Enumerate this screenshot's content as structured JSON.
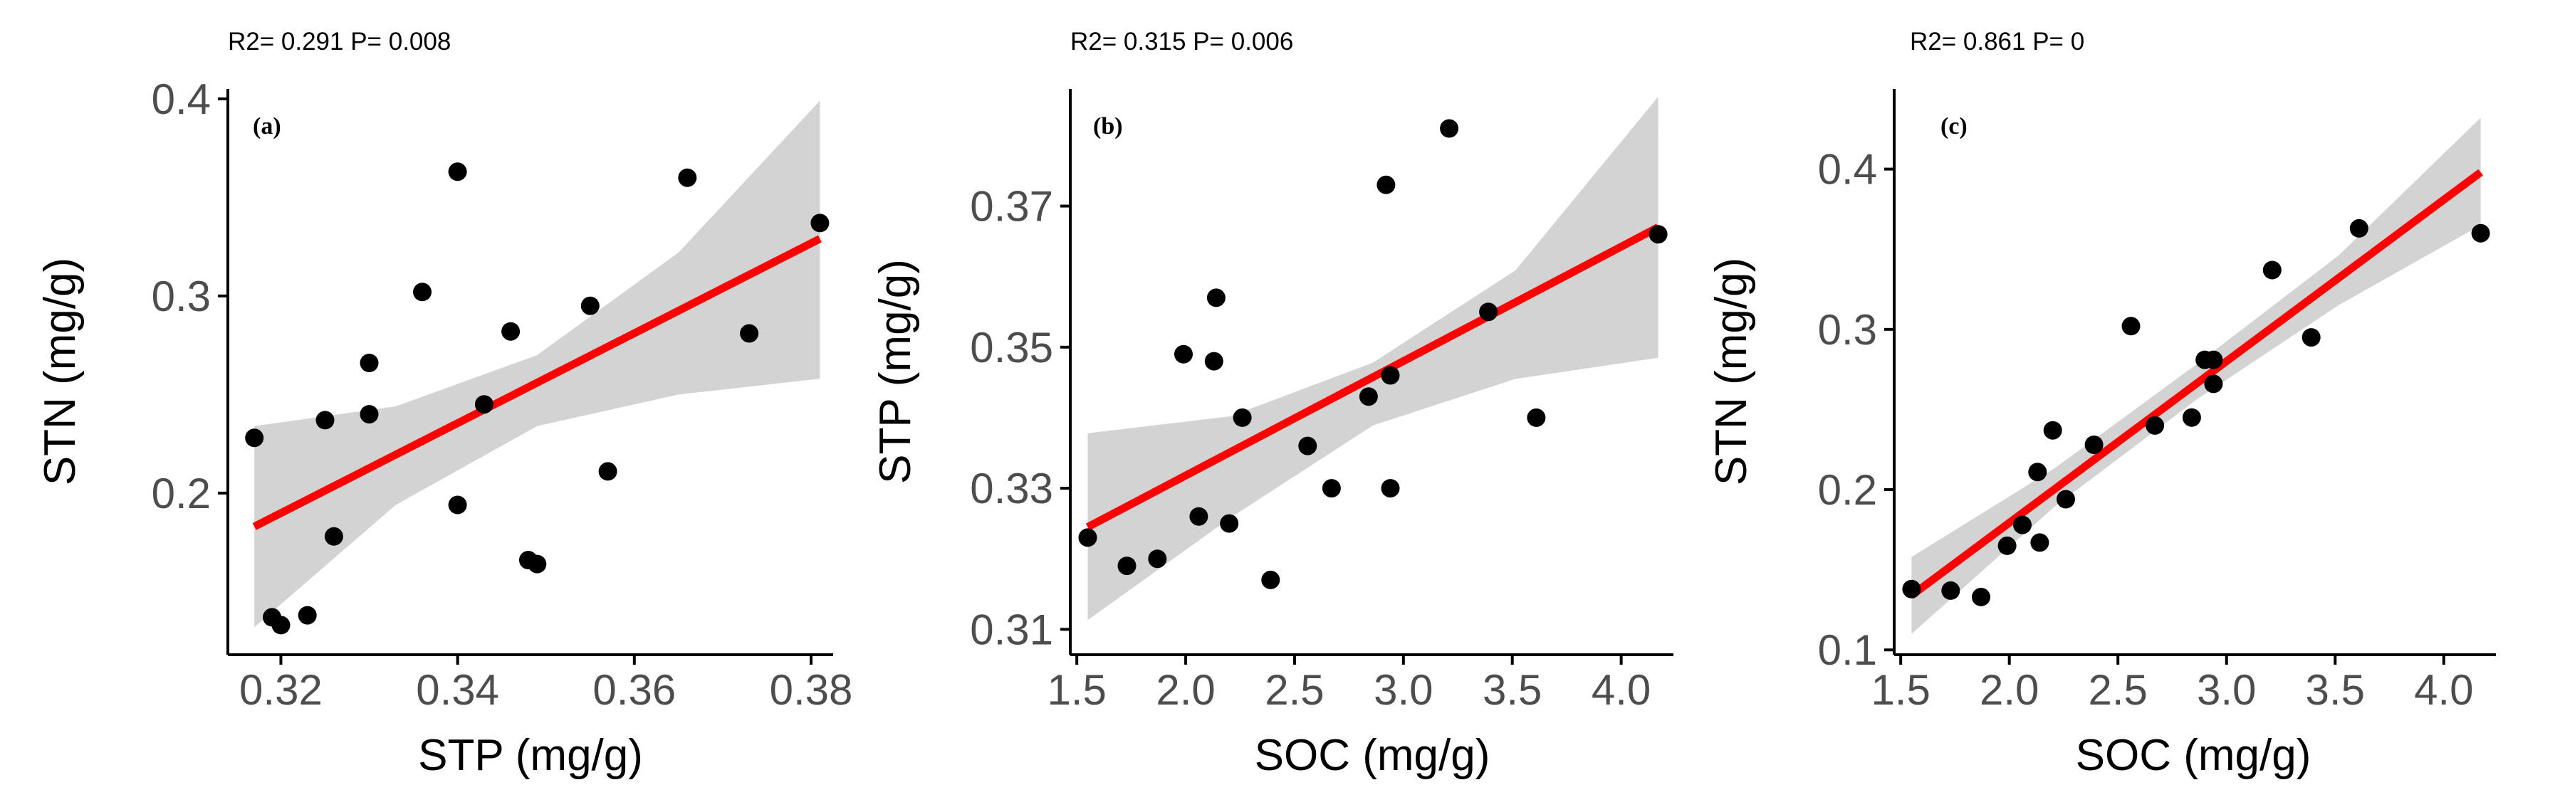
{
  "colors": {
    "band": "#d3d3d3",
    "fit_line": "#ff0000",
    "point": "#000000",
    "axis": "#000000",
    "tick_text": "#4d4d4d"
  },
  "chart_data": [
    {
      "type": "scatter",
      "panel_label": "(a)",
      "stats": "R2= 0.291  P= 0.008",
      "xlabel": "STP (mg/g)",
      "ylabel": "STN (mg/g)",
      "xlim": [
        0.314,
        0.3825
      ],
      "ylim": [
        0.118,
        0.405
      ],
      "xticks": [
        0.32,
        0.34,
        0.36,
        0.38
      ],
      "xtick_labels": [
        "0.32",
        "0.34",
        "0.36",
        "0.38"
      ],
      "yticks": [
        0.2,
        0.3,
        0.4
      ],
      "ytick_labels": [
        "0.2",
        "0.3",
        "0.4"
      ],
      "points": [
        {
          "x": 0.317,
          "y": 0.228
        },
        {
          "x": 0.319,
          "y": 0.137
        },
        {
          "x": 0.32,
          "y": 0.133
        },
        {
          "x": 0.323,
          "y": 0.138
        },
        {
          "x": 0.325,
          "y": 0.237
        },
        {
          "x": 0.326,
          "y": 0.178
        },
        {
          "x": 0.33,
          "y": 0.266
        },
        {
          "x": 0.33,
          "y": 0.24
        },
        {
          "x": 0.336,
          "y": 0.302
        },
        {
          "x": 0.34,
          "y": 0.363
        },
        {
          "x": 0.34,
          "y": 0.194
        },
        {
          "x": 0.343,
          "y": 0.245
        },
        {
          "x": 0.346,
          "y": 0.282
        },
        {
          "x": 0.348,
          "y": 0.166
        },
        {
          "x": 0.349,
          "y": 0.164
        },
        {
          "x": 0.355,
          "y": 0.295
        },
        {
          "x": 0.357,
          "y": 0.211
        },
        {
          "x": 0.366,
          "y": 0.36
        },
        {
          "x": 0.373,
          "y": 0.281
        },
        {
          "x": 0.381,
          "y": 0.337
        }
      ],
      "fit": {
        "x": [
          0.317,
          0.381
        ],
        "y": [
          0.183,
          0.329
        ]
      },
      "band": {
        "x": [
          0.317,
          0.333,
          0.349,
          0.365,
          0.381
        ],
        "lower": [
          0.132,
          0.194,
          0.234,
          0.25,
          0.258
        ],
        "upper": [
          0.234,
          0.244,
          0.27,
          0.322,
          0.399
        ]
      }
    },
    {
      "type": "scatter",
      "panel_label": "(b)",
      "stats": "R2= 0.315  P= 0.006",
      "xlabel": "SOC (mg/g)",
      "ylabel": "STP (mg/g)",
      "xlim": [
        1.47,
        4.24
      ],
      "ylim": [
        0.3064,
        0.3866
      ],
      "xticks": [
        1.5,
        2.0,
        2.5,
        3.0,
        3.5,
        4.0
      ],
      "xtick_labels": [
        "1.5",
        "2.0",
        "2.5",
        "3.0",
        "3.5",
        "4.0"
      ],
      "yticks": [
        0.31,
        0.33,
        0.35,
        0.37
      ],
      "ytick_labels": [
        "0.31",
        "0.33",
        "0.35",
        "0.37"
      ],
      "points": [
        {
          "x": 1.55,
          "y": 0.323
        },
        {
          "x": 1.73,
          "y": 0.319
        },
        {
          "x": 1.87,
          "y": 0.32
        },
        {
          "x": 1.99,
          "y": 0.349
        },
        {
          "x": 2.06,
          "y": 0.326
        },
        {
          "x": 2.13,
          "y": 0.348
        },
        {
          "x": 2.14,
          "y": 0.357
        },
        {
          "x": 2.2,
          "y": 0.325
        },
        {
          "x": 2.26,
          "y": 0.34
        },
        {
          "x": 2.39,
          "y": 0.317
        },
        {
          "x": 2.56,
          "y": 0.336
        },
        {
          "x": 2.67,
          "y": 0.33
        },
        {
          "x": 2.84,
          "y": 0.343
        },
        {
          "x": 2.92,
          "y": 0.373
        },
        {
          "x": 2.94,
          "y": 0.346
        },
        {
          "x": 2.94,
          "y": 0.33
        },
        {
          "x": 3.21,
          "y": 0.381
        },
        {
          "x": 3.39,
          "y": 0.355
        },
        {
          "x": 3.61,
          "y": 0.34
        },
        {
          "x": 4.17,
          "y": 0.366
        }
      ],
      "fit": {
        "x": [
          1.55,
          4.17
        ],
        "y": [
          0.3245,
          0.367
        ]
      },
      "band": {
        "x": [
          1.55,
          2.205,
          2.86,
          3.515,
          4.17
        ],
        "lower": [
          0.3113,
          0.3258,
          0.3389,
          0.3455,
          0.3485
        ],
        "upper": [
          0.3378,
          0.3402,
          0.3478,
          0.3609,
          0.3855
        ]
      }
    },
    {
      "type": "scatter",
      "panel_label": "(c)",
      "stats": "R2= 0.861  P= 0",
      "xlabel": "SOC (mg/g)",
      "ylabel": "STN (mg/g)",
      "xlim": [
        1.47,
        4.24
      ],
      "ylim": [
        0.097,
        0.45
      ],
      "xticks": [
        1.5,
        2.0,
        2.5,
        3.0,
        3.5,
        4.0
      ],
      "xtick_labels": [
        "1.5",
        "2.0",
        "2.5",
        "3.0",
        "3.5",
        "4.0"
      ],
      "yticks": [
        0.1,
        0.2,
        0.3,
        0.4
      ],
      "ytick_labels": [
        "0.1",
        "0.2",
        "0.3",
        "0.4"
      ],
      "points": [
        {
          "x": 1.55,
          "y": 0.138
        },
        {
          "x": 1.73,
          "y": 0.137
        },
        {
          "x": 1.87,
          "y": 0.133
        },
        {
          "x": 1.99,
          "y": 0.165
        },
        {
          "x": 2.06,
          "y": 0.178
        },
        {
          "x": 2.13,
          "y": 0.211
        },
        {
          "x": 2.14,
          "y": 0.167
        },
        {
          "x": 2.2,
          "y": 0.237
        },
        {
          "x": 2.26,
          "y": 0.194
        },
        {
          "x": 2.39,
          "y": 0.228
        },
        {
          "x": 2.56,
          "y": 0.302
        },
        {
          "x": 2.67,
          "y": 0.24
        },
        {
          "x": 2.84,
          "y": 0.245
        },
        {
          "x": 2.9,
          "y": 0.281
        },
        {
          "x": 2.94,
          "y": 0.281
        },
        {
          "x": 2.94,
          "y": 0.266
        },
        {
          "x": 3.21,
          "y": 0.337
        },
        {
          "x": 3.39,
          "y": 0.295
        },
        {
          "x": 3.61,
          "y": 0.363
        },
        {
          "x": 4.17,
          "y": 0.36
        }
      ],
      "fit": {
        "x": [
          1.55,
          4.17
        ],
        "y": [
          0.134,
          0.398
        ]
      },
      "band": {
        "x": [
          1.55,
          2.205,
          2.86,
          3.515,
          4.17
        ],
        "lower": [
          0.11,
          0.189,
          0.256,
          0.315,
          0.365
        ],
        "upper": [
          0.158,
          0.213,
          0.278,
          0.346,
          0.432
        ]
      }
    }
  ]
}
